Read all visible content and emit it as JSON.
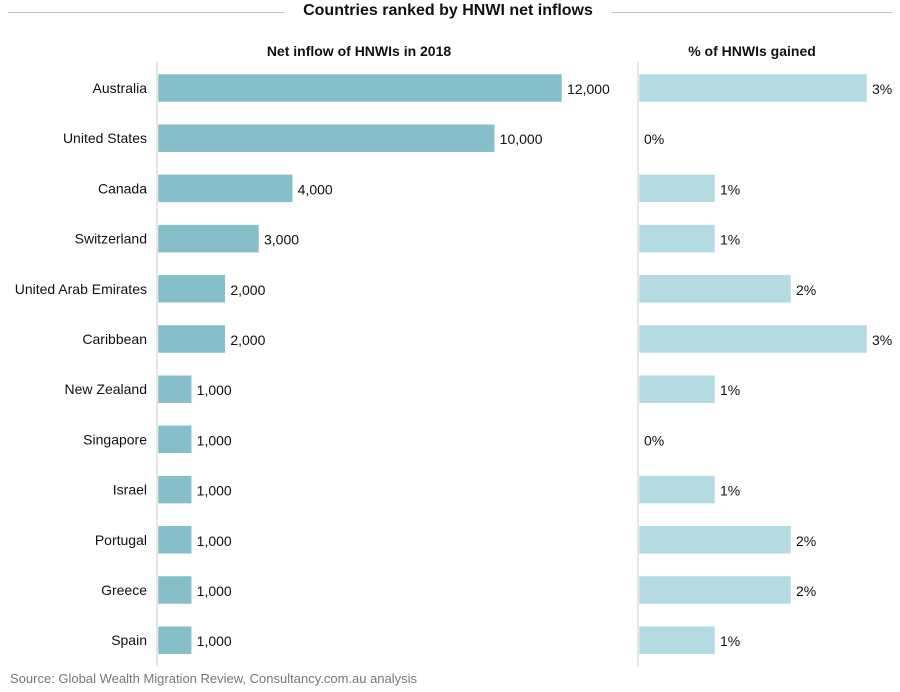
{
  "chart_data": {
    "type": "bar",
    "title": "Countries ranked by HNWI net inflows",
    "categories": [
      "Australia",
      "United States",
      "Canada",
      "Switzerland",
      "United Arab Emirates",
      "Caribbean",
      "New Zealand",
      "Singapore",
      "Israel",
      "Portugal",
      "Greece",
      "Spain"
    ],
    "series": [
      {
        "name": "Net inflow of HNWIs in 2018",
        "values": [
          12000,
          10000,
          4000,
          3000,
          2000,
          2000,
          1000,
          1000,
          1000,
          1000,
          1000,
          1000
        ],
        "labels": [
          "12,000",
          "10,000",
          "4,000",
          "3,000",
          "2,000",
          "2,000",
          "1,000",
          "1,000",
          "1,000",
          "1,000",
          "1,000",
          "1,000"
        ],
        "color": "#86bfc9",
        "xlim": [
          0,
          12000
        ]
      },
      {
        "name": "% of HNWIs gained",
        "values": [
          3,
          0,
          1,
          1,
          2,
          3,
          1,
          0,
          1,
          2,
          2,
          1
        ],
        "labels": [
          "3%",
          "0%",
          "1%",
          "1%",
          "2%",
          "3%",
          "1%",
          "0%",
          "1%",
          "2%",
          "2%",
          "1%"
        ],
        "color": "#b5dbe2",
        "xlim": [
          0,
          3
        ]
      }
    ],
    "source": "Source: Global Wealth Migration Review, Consultancy.com.au analysis"
  }
}
